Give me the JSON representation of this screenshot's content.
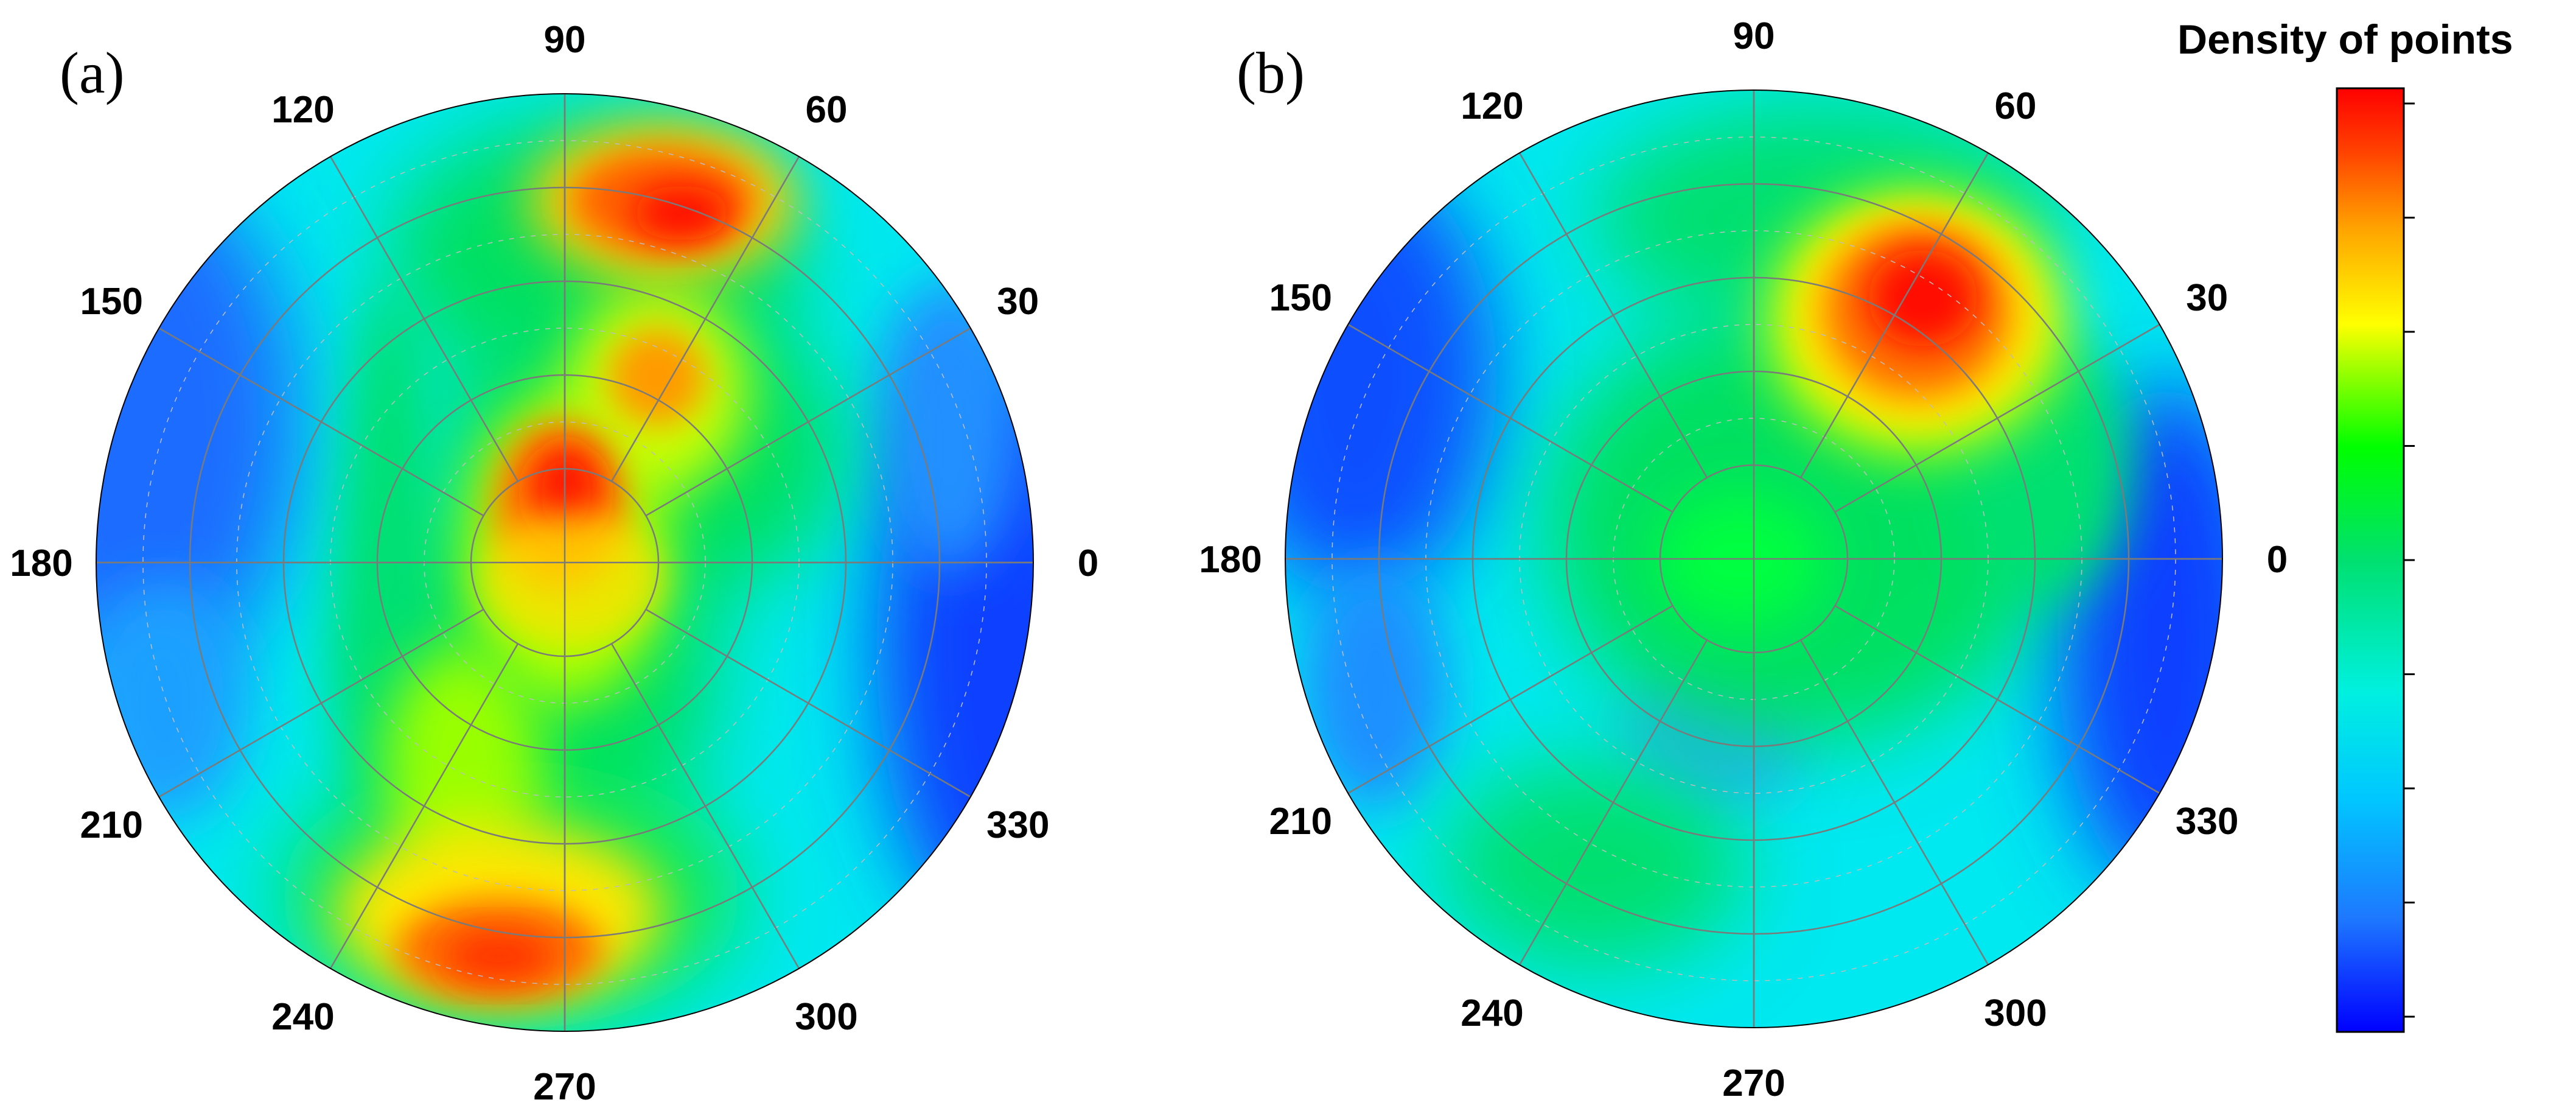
{
  "chart_data": [
    {
      "type": "heatmap",
      "subtype": "polar-contour",
      "panel_label": "(a)",
      "angular_ticks": [
        "0",
        "30",
        "60",
        "90",
        "120",
        "150",
        "180",
        "210",
        "240",
        "270",
        "300",
        "330"
      ],
      "radial_gridlines": 5,
      "angular_gridline_step_deg": 30,
      "hotspots": [
        {
          "angle_deg": 75,
          "r_frac": 0.72,
          "level": "high"
        },
        {
          "angle_deg": 95,
          "r_frac": 0.18,
          "level": "high"
        },
        {
          "angle_deg": 70,
          "r_frac": 0.38,
          "level": "medium-high"
        },
        {
          "angle_deg": 262,
          "r_frac": 0.85,
          "level": "high"
        }
      ]
    },
    {
      "type": "heatmap",
      "subtype": "polar-contour",
      "panel_label": "(b)",
      "angular_ticks": [
        "0",
        "30",
        "60",
        "90",
        "120",
        "150",
        "180",
        "210",
        "240",
        "270",
        "300",
        "330"
      ],
      "radial_gridlines": 5,
      "angular_gridline_step_deg": 30,
      "hotspots": [
        {
          "angle_deg": 55,
          "r_frac": 0.6,
          "level": "high"
        },
        {
          "angle_deg": 268,
          "r_frac": 0.35,
          "level": "low"
        }
      ]
    }
  ],
  "colorbar": {
    "title": "Density of points",
    "colormap": [
      "#0000ff",
      "#1e90ff",
      "#00e5ff",
      "#00ff66",
      "#33ff00",
      "#ccff00",
      "#ffff00",
      "#ffa500",
      "#ff4500",
      "#ff0000"
    ],
    "tick_count": 9
  }
}
